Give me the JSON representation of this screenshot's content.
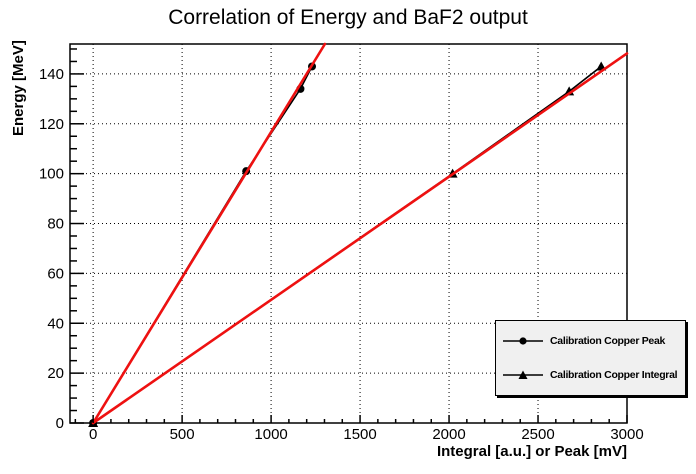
{
  "chart_data": {
    "type": "scatter",
    "title": "Correlation of Energy and BaF2 output",
    "xlabel": "Integral [a.u.] or Peak [mV]",
    "ylabel": "Energy [MeV]",
    "xlim": [
      -130,
      3000
    ],
    "ylim": [
      0,
      152
    ],
    "x_major_ticks": [
      0,
      500,
      1000,
      1500,
      2000,
      2500,
      3000
    ],
    "x_minor_step": 100,
    "y_major_ticks": [
      0,
      20,
      40,
      60,
      80,
      100,
      120,
      140
    ],
    "y_minor_step": 5,
    "grid": true,
    "grid_style": "dotted",
    "legend_position": "bottom-right",
    "series": [
      {
        "name": "Calibration Copper Peak",
        "marker": "circle",
        "marker_color": "#000000",
        "line_color": "#000000",
        "points": [
          [
            0,
            0
          ],
          [
            860,
            101
          ],
          [
            1165,
            134
          ],
          [
            1230,
            143
          ]
        ],
        "fit_line": {
          "type": "linear",
          "slope": 0.1167,
          "intercept": 0,
          "color": "#ee1111"
        }
      },
      {
        "name": "Calibration Copper Integral",
        "marker": "triangle",
        "marker_color": "#000000",
        "line_color": "#000000",
        "points": [
          [
            0,
            0
          ],
          [
            2020,
            100
          ],
          [
            2675,
            133
          ],
          [
            2855,
            143
          ]
        ],
        "fit_line": {
          "type": "linear",
          "slope": 0.0494,
          "intercept": 0,
          "color": "#ee1111"
        }
      }
    ]
  },
  "legend": {
    "entries": [
      {
        "label": "Calibration Copper Peak",
        "marker": "circle"
      },
      {
        "label": "Calibration Copper Integral",
        "marker": "triangle"
      }
    ]
  },
  "colors": {
    "background": "#ffffff",
    "axis": "#000000",
    "grid": "#000000",
    "fit_line": "#ee1111",
    "legend_background": "#f0f0f0",
    "legend_border": "#000000",
    "text": "#000000"
  }
}
